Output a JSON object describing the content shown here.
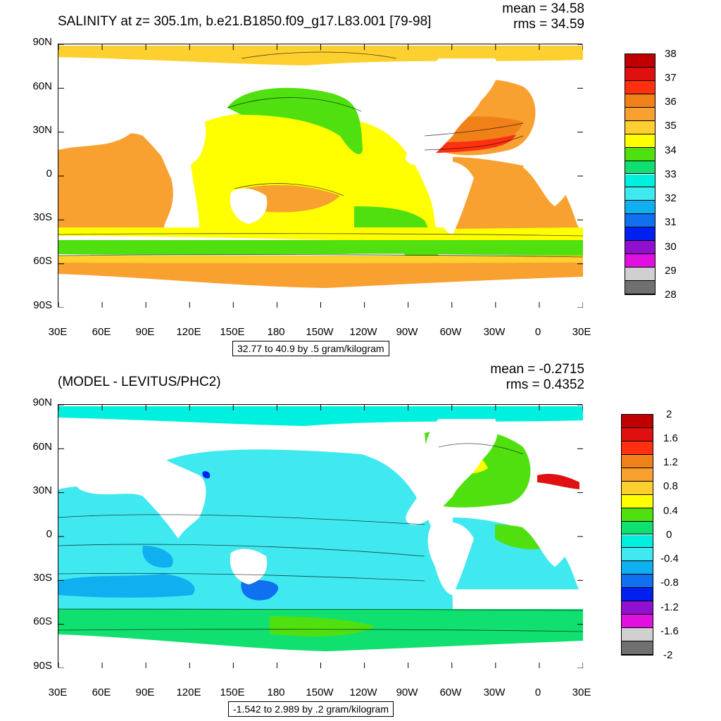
{
  "top": {
    "title": "SALINITY at z= 305.1m, b.e21.B1850.f09_g17.L83.001 [79-98]",
    "mean": "mean = 34.58",
    "rms": "rms = 34.59",
    "range_label": "32.77 to 40.9 by .5 gram/kilogram",
    "y_ticks": [
      "90N",
      "60N",
      "30N",
      "0",
      "30S",
      "60S",
      "90S"
    ],
    "x_ticks": [
      "30E",
      "60E",
      "90E",
      "120E",
      "150E",
      "180",
      "150W",
      "120W",
      "90W",
      "60W",
      "30W",
      "0",
      "30E"
    ],
    "colorbar_labels": [
      "38",
      "37",
      "36",
      "35",
      "34",
      "33",
      "32",
      "31",
      "30",
      "29",
      "28"
    ],
    "colorbar_colors": [
      "#c00000",
      "#e01010",
      "#ff3010",
      "#f08018",
      "#f8a030",
      "#fdd030",
      "#ffff00",
      "#50e010",
      "#10e070",
      "#00f0e0",
      "#40e8f0",
      "#10b0f0",
      "#1070f0",
      "#0020f0",
      "#9010d0",
      "#e010e0",
      "#d0d0d0",
      "#707070"
    ]
  },
  "bottom": {
    "title": "(MODEL - LEVITUS/PHC2)",
    "mean": "mean = -0.2715",
    "rms": "rms = 0.4352",
    "range_label": "-1.542 to 2.989 by .2 gram/kilogram",
    "y_ticks": [
      "90N",
      "60N",
      "30N",
      "0",
      "30S",
      "60S",
      "90S"
    ],
    "x_ticks": [
      "30E",
      "60E",
      "90E",
      "120E",
      "150E",
      "180",
      "150W",
      "120W",
      "90W",
      "60W",
      "30W",
      "0",
      "30E"
    ],
    "colorbar_labels": [
      "2",
      "1.6",
      "1.2",
      "0.8",
      "0.4",
      "0",
      "-0.4",
      "-0.8",
      "-1.2",
      "-1.6",
      "-2"
    ],
    "colorbar_colors": [
      "#c00000",
      "#e01010",
      "#ff3010",
      "#f08018",
      "#f8a030",
      "#fdd030",
      "#ffff00",
      "#50e010",
      "#10e070",
      "#00f0e0",
      "#40e8f0",
      "#10b0f0",
      "#1070f0",
      "#0020f0",
      "#9010d0",
      "#e010e0",
      "#d0d0d0",
      "#707070"
    ]
  }
}
